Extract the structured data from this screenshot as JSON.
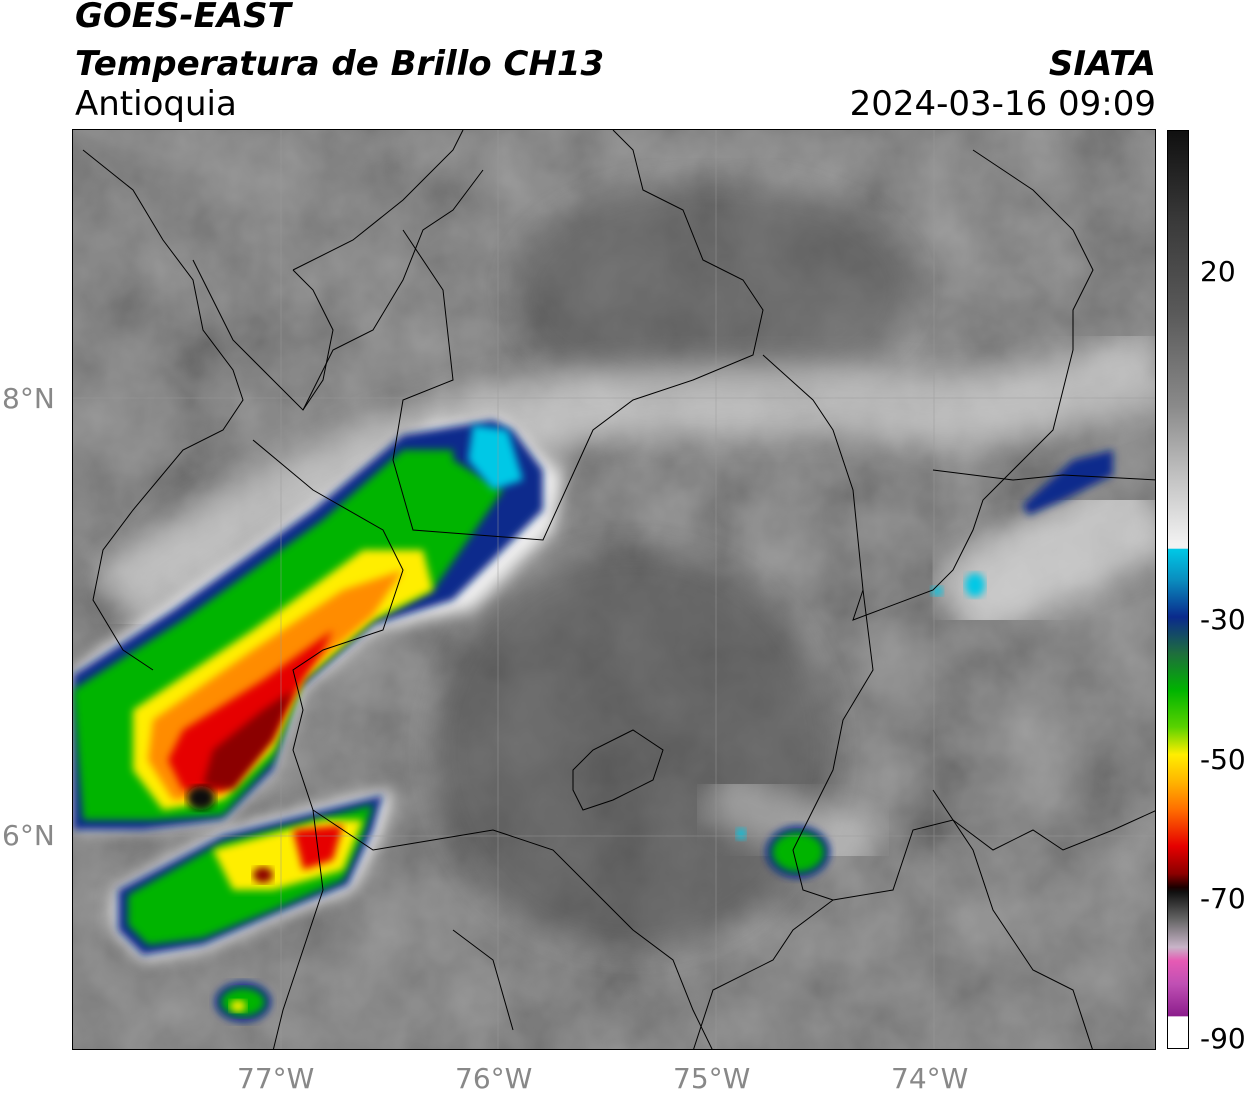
{
  "header": {
    "satellite": "GOES-EAST",
    "product": "Temperatura de Brillo CH13",
    "region": "Antioquia",
    "organization": "SIATA",
    "timestamp": "2024-03-16 09:09"
  },
  "map": {
    "lat_ticks": [
      "8°N",
      "6°N"
    ],
    "lon_ticks": [
      "77°W",
      "76°W",
      "75°W",
      "74°W"
    ]
  },
  "colorbar": {
    "ticks": [
      "20",
      "-30",
      "-50",
      "-70",
      "-90"
    ],
    "colors": {
      "warm_gray": "#5a5a5a",
      "cold_white": "#f2f2f2",
      "cyan": "#00c8e6",
      "blue": "#0a2a8c",
      "green": "#00b400",
      "yellow": "#ffee00",
      "orange": "#ff8c00",
      "red": "#e60000",
      "dark_red": "#5a0000",
      "black": "#111111",
      "pink": "#e65ab4",
      "magenta": "#8c1e8c"
    }
  }
}
